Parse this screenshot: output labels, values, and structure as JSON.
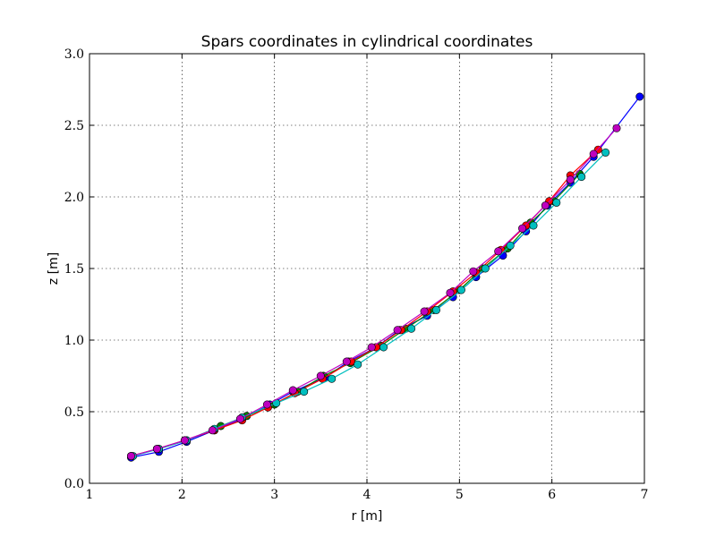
{
  "chart_data": {
    "type": "line",
    "title": "Spars coordinates in cylindrical coordinates",
    "xlabel": "r [m]",
    "ylabel": "z [m]",
    "xlim": [
      1,
      7
    ],
    "ylim": [
      0,
      3
    ],
    "xticks": [
      "1",
      "2",
      "3",
      "4",
      "5",
      "6",
      "7"
    ],
    "yticks": [
      "0.0",
      "0.5",
      "1.0",
      "1.5",
      "2.0",
      "2.5",
      "3.0"
    ],
    "grid": true,
    "series": [
      {
        "color": "#0000ff",
        "points": [
          [
            1.45,
            0.18
          ],
          [
            1.75,
            0.22
          ],
          [
            2.05,
            0.29
          ],
          [
            2.35,
            0.37
          ],
          [
            2.65,
            0.45
          ],
          [
            2.95,
            0.55
          ],
          [
            3.2,
            0.64
          ],
          [
            3.55,
            0.74
          ],
          [
            3.8,
            0.85
          ],
          [
            4.1,
            0.95
          ],
          [
            4.35,
            1.07
          ],
          [
            4.65,
            1.17
          ],
          [
            4.93,
            1.3
          ],
          [
            5.18,
            1.44
          ],
          [
            5.47,
            1.59
          ],
          [
            5.72,
            1.76
          ],
          [
            5.95,
            1.94
          ],
          [
            6.2,
            2.1
          ],
          [
            6.45,
            2.28
          ],
          [
            6.95,
            2.7
          ]
        ]
      },
      {
        "color": "#008000",
        "points": [
          [
            1.45,
            0.19
          ],
          [
            1.75,
            0.24
          ],
          [
            2.05,
            0.3
          ],
          [
            2.42,
            0.4
          ],
          [
            2.7,
            0.47
          ],
          [
            3.0,
            0.55
          ],
          [
            3.25,
            0.64
          ],
          [
            3.53,
            0.75
          ],
          [
            3.82,
            0.84
          ],
          [
            4.15,
            0.96
          ],
          [
            4.42,
            1.08
          ],
          [
            4.72,
            1.21
          ],
          [
            5.0,
            1.35
          ],
          [
            5.25,
            1.5
          ],
          [
            5.52,
            1.64
          ],
          [
            5.77,
            1.82
          ],
          [
            6.02,
            1.97
          ],
          [
            6.3,
            2.16
          ]
        ]
      },
      {
        "color": "#ff0000",
        "points": [
          [
            1.45,
            0.19
          ],
          [
            1.73,
            0.24
          ],
          [
            2.03,
            0.3
          ],
          [
            2.35,
            0.37
          ],
          [
            2.65,
            0.44
          ],
          [
            2.93,
            0.53
          ],
          [
            3.22,
            0.63
          ],
          [
            3.52,
            0.73
          ],
          [
            3.83,
            0.85
          ],
          [
            4.1,
            0.95
          ],
          [
            4.37,
            1.07
          ],
          [
            4.65,
            1.2
          ],
          [
            4.93,
            1.34
          ],
          [
            5.18,
            1.47
          ],
          [
            5.45,
            1.63
          ],
          [
            5.72,
            1.8
          ],
          [
            5.97,
            1.97
          ],
          [
            6.2,
            2.15
          ],
          [
            6.5,
            2.33
          ]
        ]
      },
      {
        "color": "#00bfbf",
        "points": [
          [
            1.47,
            0.19
          ],
          [
            1.75,
            0.24
          ],
          [
            2.05,
            0.3
          ],
          [
            2.35,
            0.38
          ],
          [
            2.65,
            0.46
          ],
          [
            3.02,
            0.56
          ],
          [
            3.32,
            0.64
          ],
          [
            3.62,
            0.73
          ],
          [
            3.9,
            0.83
          ],
          [
            4.18,
            0.95
          ],
          [
            4.48,
            1.08
          ],
          [
            4.75,
            1.21
          ],
          [
            5.02,
            1.35
          ],
          [
            5.28,
            1.5
          ],
          [
            5.55,
            1.66
          ],
          [
            5.8,
            1.8
          ],
          [
            6.05,
            1.96
          ],
          [
            6.32,
            2.14
          ],
          [
            6.58,
            2.31
          ]
        ]
      },
      {
        "color": "#bf00bf",
        "points": [
          [
            1.45,
            0.19
          ],
          [
            1.73,
            0.24
          ],
          [
            2.03,
            0.3
          ],
          [
            2.33,
            0.37
          ],
          [
            2.63,
            0.45
          ],
          [
            2.92,
            0.55
          ],
          [
            3.2,
            0.65
          ],
          [
            3.5,
            0.75
          ],
          [
            3.78,
            0.85
          ],
          [
            4.05,
            0.95
          ],
          [
            4.33,
            1.07
          ],
          [
            4.62,
            1.2
          ],
          [
            4.9,
            1.33
          ],
          [
            5.15,
            1.48
          ],
          [
            5.42,
            1.62
          ],
          [
            5.68,
            1.78
          ],
          [
            5.93,
            1.94
          ],
          [
            6.2,
            2.12
          ],
          [
            6.45,
            2.3
          ],
          [
            6.7,
            2.48
          ]
        ]
      }
    ]
  }
}
